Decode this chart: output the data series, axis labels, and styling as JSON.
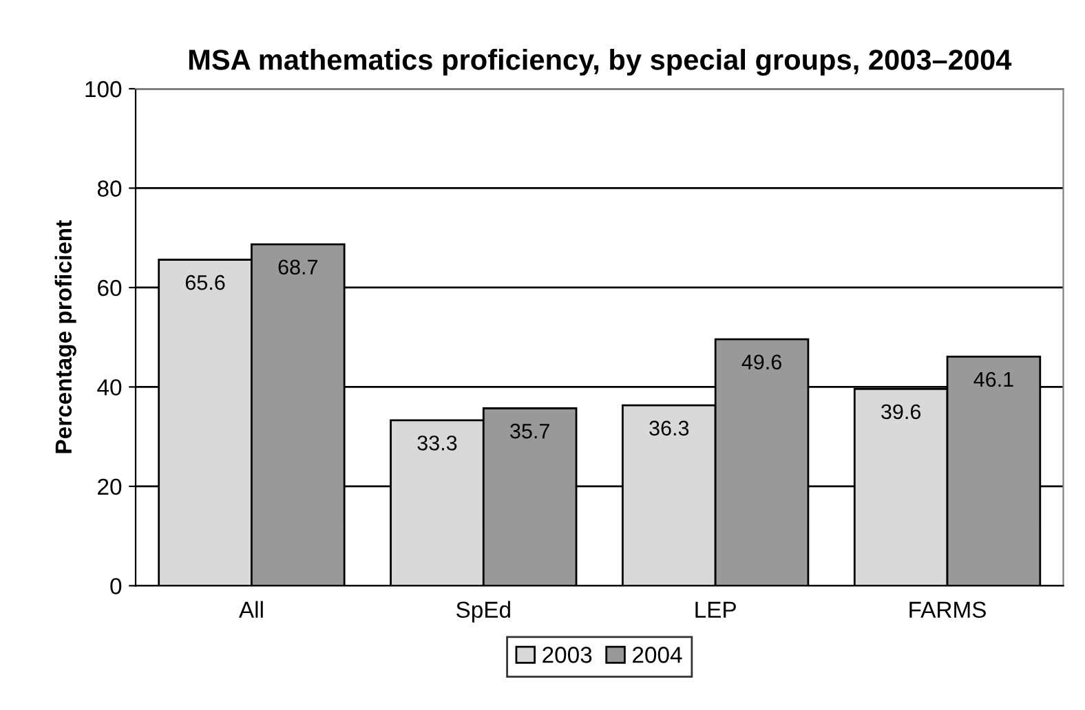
{
  "chart_data": {
    "type": "bar",
    "title": "MSA mathematics proficiency, by special groups, 2003–2004",
    "ylabel": "Percentage proficient",
    "categories": [
      "All",
      "SpEd",
      "LEP",
      "FARMS"
    ],
    "series": [
      {
        "name": "2003",
        "color": "#d9d9d9",
        "values": [
          65.6,
          33.3,
          36.3,
          39.6
        ]
      },
      {
        "name": "2004",
        "color": "#999999",
        "values": [
          68.7,
          35.7,
          49.6,
          46.1
        ]
      }
    ],
    "ylim": [
      0,
      100
    ],
    "yticks": [
      0,
      20,
      40,
      60,
      80,
      100
    ],
    "grid": "y",
    "legend": "bottom",
    "data_labels": true
  }
}
